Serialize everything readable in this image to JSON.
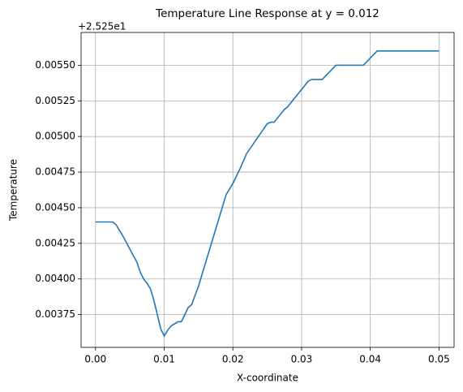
{
  "chart_data": {
    "type": "line",
    "title": "Temperature Line Response at y = 0.012",
    "x_label": "X-coordinate",
    "y_label": "Temperature",
    "y_offset_label": "+2.525e1",
    "x": [
      0,
      0.001,
      0.002,
      0.0025,
      0.003,
      0.004,
      0.005,
      0.006,
      0.0065,
      0.007,
      0.0075,
      0.008,
      0.0085,
      0.009,
      0.0095,
      0.01,
      0.0105,
      0.011,
      0.012,
      0.0125,
      0.013,
      0.0135,
      0.014,
      0.015,
      0.016,
      0.017,
      0.018,
      0.019,
      0.02,
      0.021,
      0.022,
      0.023,
      0.024,
      0.025,
      0.0255,
      0.026,
      0.027,
      0.0275,
      0.028,
      0.029,
      0.03,
      0.031,
      0.0315,
      0.033,
      0.034,
      0.035,
      0.0355,
      0.039,
      0.04,
      0.041,
      0.05
    ],
    "series": [
      {
        "name": "Temperature",
        "color": "#1f77b4",
        "values": [
          0.0044,
          0.0044,
          0.0044,
          0.0044,
          0.00438,
          0.0043,
          0.00421,
          0.00412,
          0.00405,
          0.004,
          0.00397,
          0.00393,
          0.00385,
          0.00375,
          0.00365,
          0.0036,
          0.00364,
          0.00367,
          0.0037,
          0.0037,
          0.00375,
          0.0038,
          0.00382,
          0.00395,
          0.00411,
          0.00427,
          0.00443,
          0.00459,
          0.00467,
          0.00477,
          0.00488,
          0.00495,
          0.00502,
          0.00509,
          0.0051,
          0.0051,
          0.00516,
          0.00519,
          0.00521,
          0.00527,
          0.00533,
          0.00539,
          0.0054,
          0.0054,
          0.00545,
          0.0055,
          0.0055,
          0.0055,
          0.00555,
          0.0056,
          0.0056
        ]
      }
    ],
    "xlim": [
      -0.0021,
      0.0522
    ],
    "ylim": [
      0.00352,
      0.00573
    ],
    "xticks": [
      {
        "value": 0,
        "label": "0.00"
      },
      0.01,
      0.02,
      0.03,
      0.04,
      0.05
    ],
    "yticks": [
      0.00375,
      {
        "value": 0.004,
        "label": "0.00400"
      },
      0.00425,
      {
        "value": 0.0045,
        "label": "0.00450"
      },
      0.00475,
      {
        "value": 0.005,
        "label": "0.00500"
      },
      0.00525,
      {
        "value": 0.0055,
        "label": "0.00550"
      }
    ],
    "grid": true
  }
}
